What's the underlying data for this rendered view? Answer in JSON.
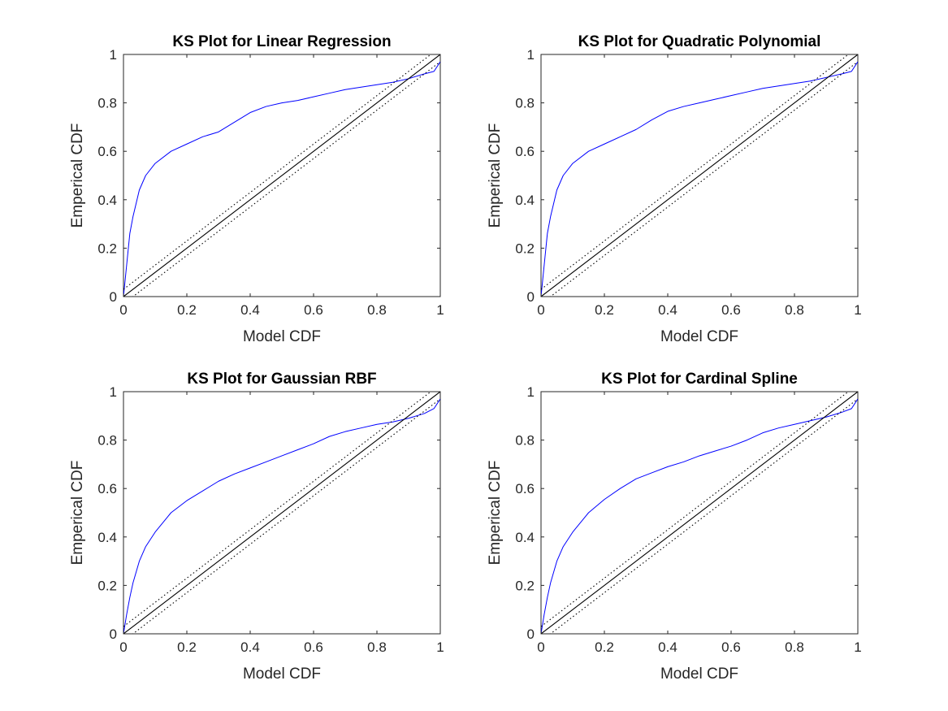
{
  "chart_data": [
    {
      "type": "line",
      "title": "KS Plot for Linear Regression",
      "xlabel": "Model CDF",
      "ylabel": "Emperical CDF",
      "xlim": [
        0,
        1
      ],
      "ylim": [
        0,
        1
      ],
      "xticks": [
        "0",
        "0.2",
        "0.4",
        "0.6",
        "0.8",
        "1"
      ],
      "yticks": [
        "0",
        "0.2",
        "0.4",
        "0.6",
        "0.8",
        "1"
      ],
      "series": [
        {
          "name": "KS curve",
          "color": "#0000ff",
          "x": [
            0,
            0.01,
            0.02,
            0.03,
            0.05,
            0.07,
            0.1,
            0.15,
            0.2,
            0.25,
            0.3,
            0.35,
            0.4,
            0.45,
            0.5,
            0.55,
            0.6,
            0.65,
            0.7,
            0.75,
            0.8,
            0.85,
            0.9,
            0.95,
            0.98,
            1
          ],
          "y": [
            0,
            0.13,
            0.26,
            0.33,
            0.44,
            0.5,
            0.55,
            0.6,
            0.63,
            0.66,
            0.68,
            0.72,
            0.76,
            0.785,
            0.8,
            0.81,
            0.825,
            0.84,
            0.855,
            0.865,
            0.875,
            0.885,
            0.9,
            0.92,
            0.93,
            0.97
          ]
        },
        {
          "name": "45-degree line",
          "color": "#000000",
          "x": [
            0,
            1
          ],
          "y": [
            0,
            1
          ]
        },
        {
          "name": "upper confidence bound",
          "color": "#000000",
          "dash": "dotted",
          "x": [
            0,
            1
          ],
          "y": [
            0.03,
            1.03
          ]
        },
        {
          "name": "lower confidence bound",
          "color": "#000000",
          "dash": "dotted",
          "x": [
            0,
            1
          ],
          "y": [
            -0.03,
            0.97
          ]
        }
      ]
    },
    {
      "type": "line",
      "title": "KS Plot for Quadratic Polynomial",
      "xlabel": "Model CDF",
      "ylabel": "Emperical CDF",
      "xlim": [
        0,
        1
      ],
      "ylim": [
        0,
        1
      ],
      "xticks": [
        "0",
        "0.2",
        "0.4",
        "0.6",
        "0.8",
        "1"
      ],
      "yticks": [
        "0",
        "0.2",
        "0.4",
        "0.6",
        "0.8",
        "1"
      ],
      "series": [
        {
          "name": "KS curve",
          "color": "#0000ff",
          "x": [
            0,
            0.01,
            0.02,
            0.03,
            0.05,
            0.07,
            0.1,
            0.15,
            0.2,
            0.25,
            0.3,
            0.35,
            0.4,
            0.45,
            0.5,
            0.55,
            0.6,
            0.65,
            0.7,
            0.75,
            0.8,
            0.85,
            0.9,
            0.95,
            0.98,
            1
          ],
          "y": [
            0,
            0.13,
            0.26,
            0.33,
            0.44,
            0.5,
            0.55,
            0.6,
            0.63,
            0.66,
            0.69,
            0.73,
            0.765,
            0.785,
            0.8,
            0.815,
            0.83,
            0.845,
            0.86,
            0.87,
            0.88,
            0.89,
            0.905,
            0.92,
            0.93,
            0.97
          ]
        },
        {
          "name": "45-degree line",
          "color": "#000000",
          "x": [
            0,
            1
          ],
          "y": [
            0,
            1
          ]
        },
        {
          "name": "upper confidence bound",
          "color": "#000000",
          "dash": "dotted",
          "x": [
            0,
            1
          ],
          "y": [
            0.03,
            1.03
          ]
        },
        {
          "name": "lower confidence bound",
          "color": "#000000",
          "dash": "dotted",
          "x": [
            0,
            1
          ],
          "y": [
            -0.03,
            0.97
          ]
        }
      ]
    },
    {
      "type": "line",
      "title": "KS Plot for Gaussian RBF",
      "xlabel": "Model CDF",
      "ylabel": "Emperical CDF",
      "xlim": [
        0,
        1
      ],
      "ylim": [
        0,
        1
      ],
      "xticks": [
        "0",
        "0.2",
        "0.4",
        "0.6",
        "0.8",
        "1"
      ],
      "yticks": [
        "0",
        "0.2",
        "0.4",
        "0.6",
        "0.8",
        "1"
      ],
      "series": [
        {
          "name": "KS curve",
          "color": "#0000ff",
          "x": [
            0,
            0.01,
            0.02,
            0.03,
            0.05,
            0.07,
            0.1,
            0.15,
            0.2,
            0.25,
            0.3,
            0.35,
            0.4,
            0.45,
            0.5,
            0.55,
            0.6,
            0.65,
            0.7,
            0.75,
            0.8,
            0.85,
            0.9,
            0.95,
            0.98,
            1
          ],
          "y": [
            0,
            0.08,
            0.15,
            0.21,
            0.3,
            0.36,
            0.42,
            0.5,
            0.55,
            0.59,
            0.63,
            0.66,
            0.685,
            0.71,
            0.735,
            0.76,
            0.785,
            0.815,
            0.835,
            0.85,
            0.865,
            0.875,
            0.89,
            0.91,
            0.93,
            0.97
          ]
        },
        {
          "name": "45-degree line",
          "color": "#000000",
          "x": [
            0,
            1
          ],
          "y": [
            0,
            1
          ]
        },
        {
          "name": "upper confidence bound",
          "color": "#000000",
          "dash": "dotted",
          "x": [
            0,
            1
          ],
          "y": [
            0.03,
            1.03
          ]
        },
        {
          "name": "lower confidence bound",
          "color": "#000000",
          "dash": "dotted",
          "x": [
            0,
            1
          ],
          "y": [
            -0.03,
            0.97
          ]
        }
      ]
    },
    {
      "type": "line",
      "title": "KS Plot for Cardinal Spline",
      "xlabel": "Model CDF",
      "ylabel": "Emperical CDF",
      "xlim": [
        0,
        1
      ],
      "ylim": [
        0,
        1
      ],
      "xticks": [
        "0",
        "0.2",
        "0.4",
        "0.6",
        "0.8",
        "1"
      ],
      "yticks": [
        "0",
        "0.2",
        "0.4",
        "0.6",
        "0.8",
        "1"
      ],
      "series": [
        {
          "name": "KS curve",
          "color": "#0000ff",
          "x": [
            0,
            0.01,
            0.02,
            0.03,
            0.05,
            0.07,
            0.1,
            0.15,
            0.2,
            0.25,
            0.3,
            0.35,
            0.4,
            0.45,
            0.5,
            0.55,
            0.6,
            0.65,
            0.7,
            0.75,
            0.8,
            0.85,
            0.9,
            0.95,
            0.98,
            1
          ],
          "y": [
            0,
            0.08,
            0.15,
            0.21,
            0.3,
            0.36,
            0.42,
            0.5,
            0.555,
            0.6,
            0.64,
            0.665,
            0.69,
            0.71,
            0.735,
            0.755,
            0.775,
            0.8,
            0.83,
            0.85,
            0.865,
            0.88,
            0.895,
            0.915,
            0.93,
            0.97
          ]
        },
        {
          "name": "45-degree line",
          "color": "#000000",
          "x": [
            0,
            1
          ],
          "y": [
            0,
            1
          ]
        },
        {
          "name": "upper confidence bound",
          "color": "#000000",
          "dash": "dotted",
          "x": [
            0,
            1
          ],
          "y": [
            0.03,
            1.03
          ]
        },
        {
          "name": "lower confidence bound",
          "color": "#000000",
          "dash": "dotted",
          "x": [
            0,
            1
          ],
          "y": [
            -0.03,
            0.97
          ]
        }
      ]
    }
  ]
}
